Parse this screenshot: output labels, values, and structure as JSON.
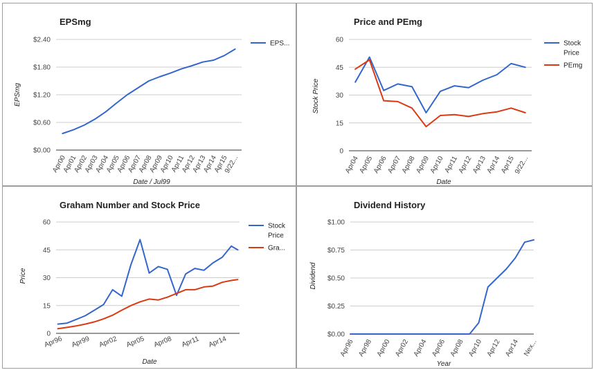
{
  "colors": {
    "blue": "#3366cc",
    "red": "#dc3912",
    "grid": "#cccccc",
    "axis": "#333333"
  },
  "chart_data": [
    {
      "id": "eps",
      "type": "line",
      "title": "EPSmg",
      "xlabel": "Date / Jul99",
      "ylabel": "EPSmg",
      "ylim": [
        0,
        2.4
      ],
      "yticks": [
        "$0.00",
        "$0.60",
        "$1.20",
        "$1.80",
        "$2.40"
      ],
      "categories": [
        "Apr00",
        "Apr01",
        "Apr02",
        "Apr03",
        "Apr04",
        "Apr05",
        "Apr06",
        "Apr07",
        "Apr08",
        "Apr09",
        "Apr10",
        "Apr11",
        "Apr12",
        "Apr13",
        "Apr14",
        "Apr15",
        "9/22..."
      ],
      "series": [
        {
          "name": "EPS...",
          "color": "#3366cc",
          "values": [
            0.36,
            0.44,
            0.54,
            0.67,
            0.83,
            1.02,
            1.2,
            1.35,
            1.5,
            1.59,
            1.67,
            1.76,
            1.83,
            1.91,
            1.95,
            2.05,
            2.19
          ]
        }
      ],
      "legend": "right",
      "grid": true
    },
    {
      "id": "price-pe",
      "type": "line",
      "title": "Price and PEmg",
      "xlabel": "Date",
      "ylabel": "Stock Price",
      "ylim": [
        0,
        60
      ],
      "yticks": [
        "0",
        "15",
        "30",
        "45",
        "60"
      ],
      "categories": [
        "Apr04",
        "Apr05",
        "Apr06",
        "Apr07",
        "Apr08",
        "Apr09",
        "Apr10",
        "Apr11",
        "Apr12",
        "Apr13",
        "Apr14",
        "Apr15",
        "9/22..."
      ],
      "series": [
        {
          "name": "Stock Price",
          "color": "#3366cc",
          "values": [
            37,
            50.5,
            32.5,
            36,
            34.5,
            20.5,
            32,
            35,
            34,
            38,
            41,
            47,
            45
          ]
        },
        {
          "name": "PEmg",
          "color": "#dc3912",
          "values": [
            44,
            49,
            27,
            26.5,
            23,
            13,
            19,
            19.5,
            18.5,
            20,
            21,
            23,
            20.5
          ]
        }
      ],
      "legend": "right",
      "grid": true
    },
    {
      "id": "graham",
      "type": "line",
      "title": "Graham Number and Stock Price",
      "xlabel": "Date",
      "ylabel": "Price",
      "ylim": [
        0,
        60
      ],
      "yticks": [
        "0",
        "15",
        "30",
        "45",
        "60"
      ],
      "categories": [
        "Apr96",
        "Apr99",
        "Apr02",
        "Apr05",
        "Apr08",
        "Apr11",
        "Apr14"
      ],
      "x": [
        1996.0,
        1997.0,
        1998.0,
        1999.0,
        2000.0,
        2001.0,
        2002.0,
        2003.0,
        2004.0,
        2005.0,
        2006.0,
        2007.0,
        2008.0,
        2009.0,
        2010.0,
        2011.0,
        2012.0,
        2013.0,
        2014.0,
        2015.0,
        2015.7
      ],
      "series": [
        {
          "name": "Stock Price",
          "color": "#3366cc",
          "values": [
            5,
            5.5,
            7.5,
            9.5,
            12.5,
            15.5,
            23.5,
            20,
            37,
            50.5,
            32.5,
            36,
            34.5,
            20.5,
            32,
            35,
            34,
            38,
            41,
            47,
            45
          ]
        },
        {
          "name": "Gra...",
          "color": "#dc3912",
          "values": [
            2.5,
            3.2,
            4,
            5,
            6.2,
            7.8,
            9.8,
            12.5,
            15,
            17,
            18.5,
            18,
            19.5,
            21.5,
            23.5,
            23.5,
            25,
            25.5,
            27.5,
            28.5,
            29
          ]
        }
      ],
      "legend": "right",
      "grid": true
    },
    {
      "id": "dividend",
      "type": "line",
      "title": "Dividend History",
      "xlabel": "Year",
      "ylabel": "Dividend",
      "ylim": [
        0,
        1.0
      ],
      "yticks": [
        "$0.00",
        "$0.25",
        "$0.50",
        "$0.75",
        "$1.00"
      ],
      "categories": [
        "Apr96",
        "Apr98",
        "Apr00",
        "Apr02",
        "Apr04",
        "Apr06",
        "Apr08",
        "Apr10",
        "Apr12",
        "Apr14",
        "Nex..."
      ],
      "x": [
        1996,
        1998,
        2000,
        2002,
        2004,
        2006,
        2008,
        2009,
        2010,
        2011,
        2012,
        2013,
        2014,
        2015,
        2016
      ],
      "series": [
        {
          "name": "Dividend",
          "color": "#3366cc",
          "values": [
            0,
            0,
            0,
            0,
            0,
            0,
            0,
            0,
            0.1,
            0.42,
            0.5,
            0.58,
            0.68,
            0.82,
            0.84
          ]
        }
      ],
      "legend": "none",
      "grid": true
    }
  ]
}
